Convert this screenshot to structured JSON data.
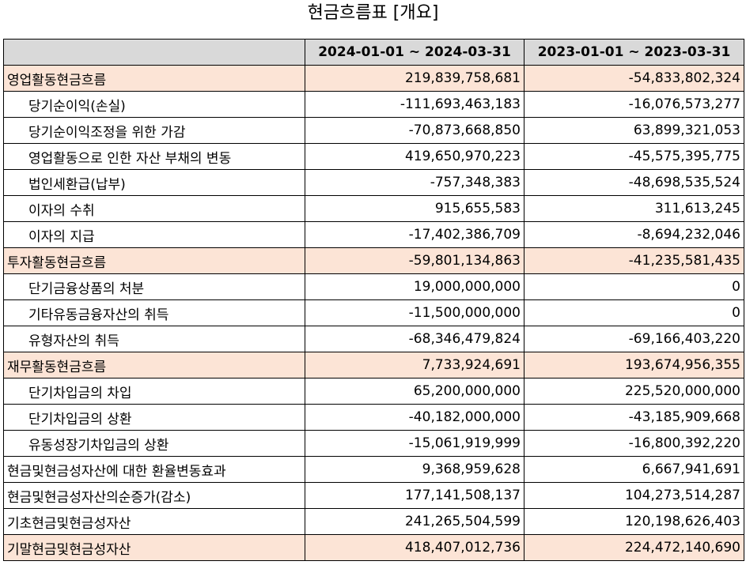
{
  "title": "현금흐름표 [개요]",
  "header": {
    "blank": "",
    "period_1": "2024-01-01 ~ 2024-03-31",
    "period_2": "2023-01-01 ~ 2023-03-31"
  },
  "colors": {
    "highlight_row": "#fce4d6",
    "header_bg": "#d9d9d9"
  },
  "rows": [
    {
      "label": "영업활동현금흐름",
      "v1": "219,839,758,681",
      "v2": "-54,833,802,324",
      "highlight": true,
      "indent": false
    },
    {
      "label": "당기순이익(손실)",
      "v1": "-111,693,463,183",
      "v2": "-16,076,573,277",
      "highlight": false,
      "indent": true
    },
    {
      "label": "당기순이익조정을 위한 가감",
      "v1": "-70,873,668,850",
      "v2": "63,899,321,053",
      "highlight": false,
      "indent": true
    },
    {
      "label": "영업활동으로 인한 자산 부채의 변동",
      "v1": "419,650,970,223",
      "v2": "-45,575,395,775",
      "highlight": false,
      "indent": true
    },
    {
      "label": "법인세환급(납부)",
      "v1": "-757,348,383",
      "v2": "-48,698,535,524",
      "highlight": false,
      "indent": true
    },
    {
      "label": "이자의 수취",
      "v1": "915,655,583",
      "v2": "311,613,245",
      "highlight": false,
      "indent": true
    },
    {
      "label": "이자의 지급",
      "v1": "-17,402,386,709",
      "v2": "-8,694,232,046",
      "highlight": false,
      "indent": true
    },
    {
      "label": "투자활동현금흐름",
      "v1": "-59,801,134,863",
      "v2": "-41,235,581,435",
      "highlight": true,
      "indent": false
    },
    {
      "label": "단기금융상품의 처분",
      "v1": "19,000,000,000",
      "v2": "0",
      "highlight": false,
      "indent": true
    },
    {
      "label": "기타유동금융자산의 취득",
      "v1": "-11,500,000,000",
      "v2": "0",
      "highlight": false,
      "indent": true
    },
    {
      "label": "유형자산의 취득",
      "v1": "-68,346,479,824",
      "v2": "-69,166,403,220",
      "highlight": false,
      "indent": true
    },
    {
      "label": "재무활동현금흐름",
      "v1": "7,733,924,691",
      "v2": "193,674,956,355",
      "highlight": true,
      "indent": false
    },
    {
      "label": "단기차입금의 차입",
      "v1": "65,200,000,000",
      "v2": "225,520,000,000",
      "highlight": false,
      "indent": true
    },
    {
      "label": "단기차입금의 상환",
      "v1": "-40,182,000,000",
      "v2": "-43,185,909,668",
      "highlight": false,
      "indent": true
    },
    {
      "label": "유동성장기차입금의 상환",
      "v1": "-15,061,919,999",
      "v2": "-16,800,392,220",
      "highlight": false,
      "indent": true
    },
    {
      "label": "현금및현금성자산에 대한 환율변동효과",
      "v1": "9,368,959,628",
      "v2": "6,667,941,691",
      "highlight": false,
      "indent": false
    },
    {
      "label": "현금및현금성자산의순증가(감소)",
      "v1": "177,141,508,137",
      "v2": "104,273,514,287",
      "highlight": false,
      "indent": false
    },
    {
      "label": "기초현금및현금성자산",
      "v1": "241,265,504,599",
      "v2": "120,198,626,403",
      "highlight": false,
      "indent": false
    },
    {
      "label": "기말현금및현금성자산",
      "v1": "418,407,012,736",
      "v2": "224,472,140,690",
      "highlight": true,
      "indent": false
    }
  ]
}
